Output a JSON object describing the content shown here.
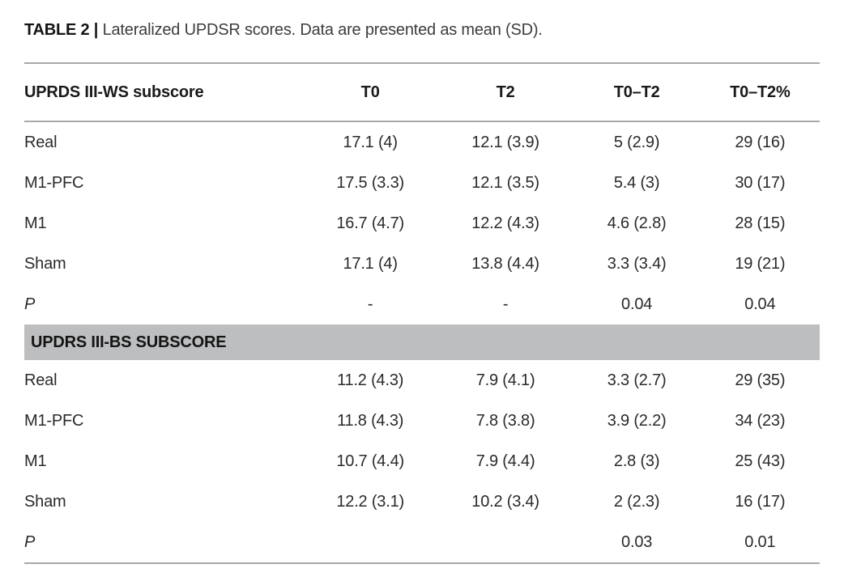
{
  "caption": {
    "label": "TABLE 2 |",
    "text": "Lateralized UPDSR scores. Data are presented as mean (SD)."
  },
  "table": {
    "columns": [
      "UPRDS III-WS subscore",
      "T0",
      "T2",
      "T0–T2",
      "T0–T2%"
    ],
    "sections": [
      {
        "header": null,
        "rows": [
          {
            "label": "Real",
            "italic": false,
            "values": [
              "17.1 (4)",
              "12.1 (3.9)",
              "5 (2.9)",
              "29 (16)"
            ]
          },
          {
            "label": "M1-PFC",
            "italic": false,
            "values": [
              "17.5 (3.3)",
              "12.1 (3.5)",
              "5.4 (3)",
              "30 (17)"
            ]
          },
          {
            "label": "M1",
            "italic": false,
            "values": [
              "16.7 (4.7)",
              "12.2 (4.3)",
              "4.6 (2.8)",
              "28 (15)"
            ]
          },
          {
            "label": "Sham",
            "italic": false,
            "values": [
              "17.1 (4)",
              "13.8 (4.4)",
              "3.3 (3.4)",
              "19 (21)"
            ]
          },
          {
            "label": "P",
            "italic": true,
            "values": [
              "-",
              "-",
              "0.04",
              "0.04"
            ]
          }
        ]
      },
      {
        "header": "UPDRS III-BS SUBSCORE",
        "rows": [
          {
            "label": "Real",
            "italic": false,
            "values": [
              "11.2 (4.3)",
              "7.9 (4.1)",
              "3.3 (2.7)",
              "29 (35)"
            ]
          },
          {
            "label": "M1-PFC",
            "italic": false,
            "values": [
              "11.8 (4.3)",
              "7.8 (3.8)",
              "3.9 (2.2)",
              "34 (23)"
            ]
          },
          {
            "label": "M1",
            "italic": false,
            "values": [
              "10.7 (4.4)",
              "7.9 (4.4)",
              "2.8 (3)",
              "25 (43)"
            ]
          },
          {
            "label": "Sham",
            "italic": false,
            "values": [
              "12.2 (3.1)",
              "10.2 (3.4)",
              "2 (2.3)",
              "16 (17)"
            ]
          },
          {
            "label": "P",
            "italic": true,
            "values": [
              "",
              "",
              "0.03",
              "0.01"
            ]
          }
        ]
      }
    ]
  },
  "colors": {
    "section_band": "#bcbec0",
    "rule": "#a6a8ab",
    "text": "#2a2a2a"
  }
}
